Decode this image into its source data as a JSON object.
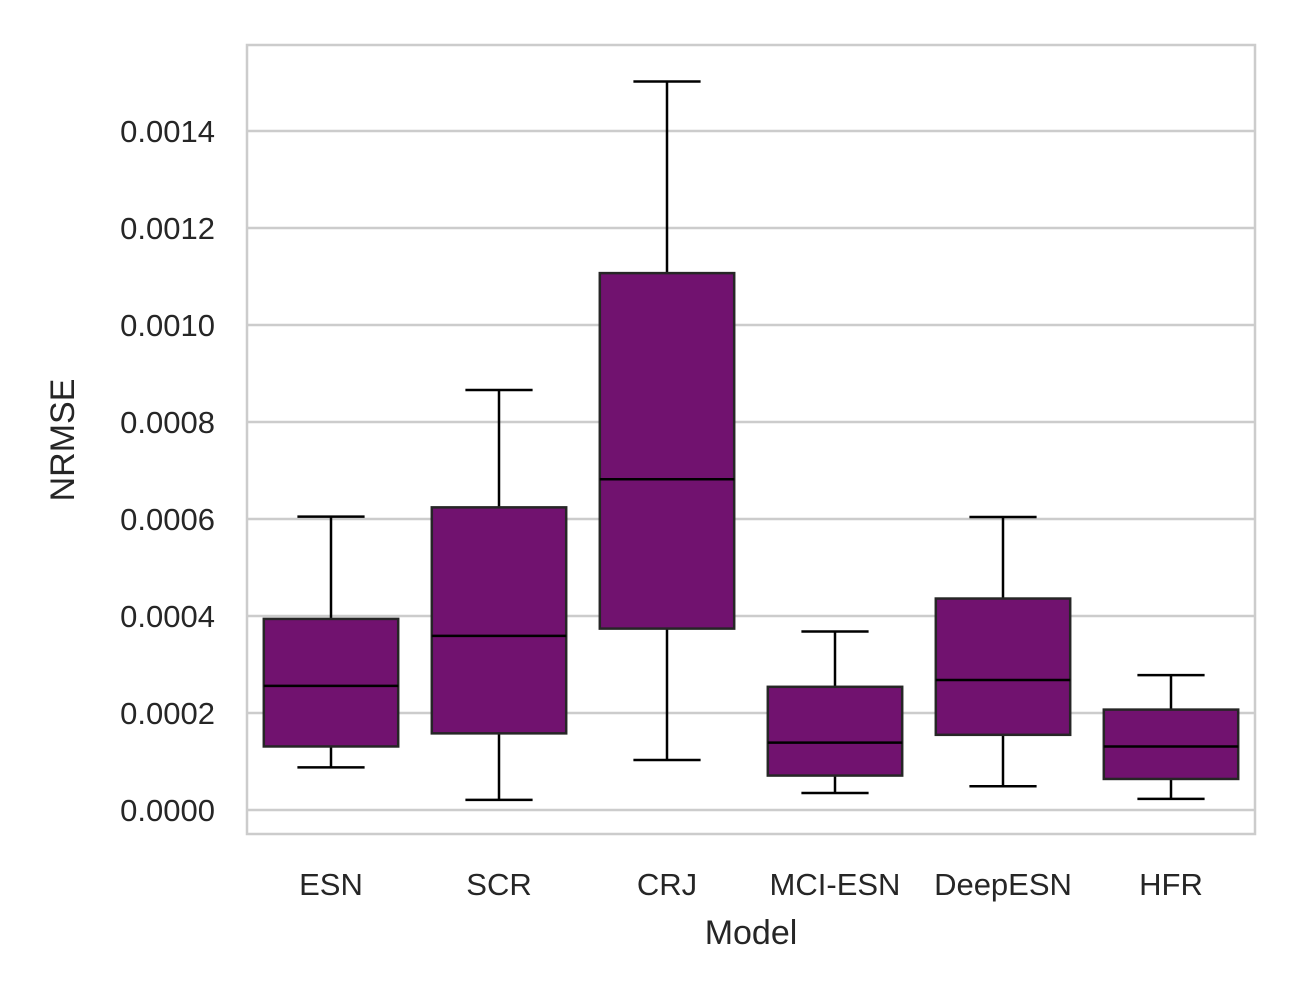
{
  "chart_data": {
    "type": "box",
    "xlabel": "Model",
    "ylabel": "NRMSE",
    "ylim": [
      -5e-05,
      0.00158
    ],
    "yticks": [
      0.0,
      0.0002,
      0.0004,
      0.0006,
      0.0008,
      0.001,
      0.0012,
      0.0014
    ],
    "ytick_labels": [
      "0.0000",
      "0.0002",
      "0.0004",
      "0.0006",
      "0.0008",
      "0.0010",
      "0.0012",
      "0.0014"
    ],
    "grid": "horizontal",
    "categories": [
      "ESN",
      "SCR",
      "CRJ",
      "MCI-ESN",
      "DeepESN",
      "HFR"
    ],
    "boxes": [
      {
        "label": "ESN",
        "whisker_low": 8.8e-05,
        "q1": 0.000131,
        "median": 0.000256,
        "q3": 0.000394,
        "whisker_high": 0.000605
      },
      {
        "label": "SCR",
        "whisker_low": 2.1e-05,
        "q1": 0.000158,
        "median": 0.000359,
        "q3": 0.000624,
        "whisker_high": 0.000866
      },
      {
        "label": "CRJ",
        "whisker_low": 0.000103,
        "q1": 0.000374,
        "median": 0.000682,
        "q3": 0.001107,
        "whisker_high": 0.001502
      },
      {
        "label": "MCI-ESN",
        "whisker_low": 3.5e-05,
        "q1": 7.1e-05,
        "median": 0.000139,
        "q3": 0.000254,
        "whisker_high": 0.000368
      },
      {
        "label": "DeepESN",
        "whisker_low": 4.9e-05,
        "q1": 0.000155,
        "median": 0.000268,
        "q3": 0.000436,
        "whisker_high": 0.000604
      },
      {
        "label": "HFR",
        "whisker_low": 2.3e-05,
        "q1": 6.4e-05,
        "median": 0.000131,
        "q3": 0.000207,
        "whisker_high": 0.000278
      }
    ],
    "colors": {
      "box_fill": "#71126f",
      "box_edge": "#262626",
      "grid": "#cccccc",
      "frame": "#cccccc",
      "whisker": "#000000"
    }
  }
}
